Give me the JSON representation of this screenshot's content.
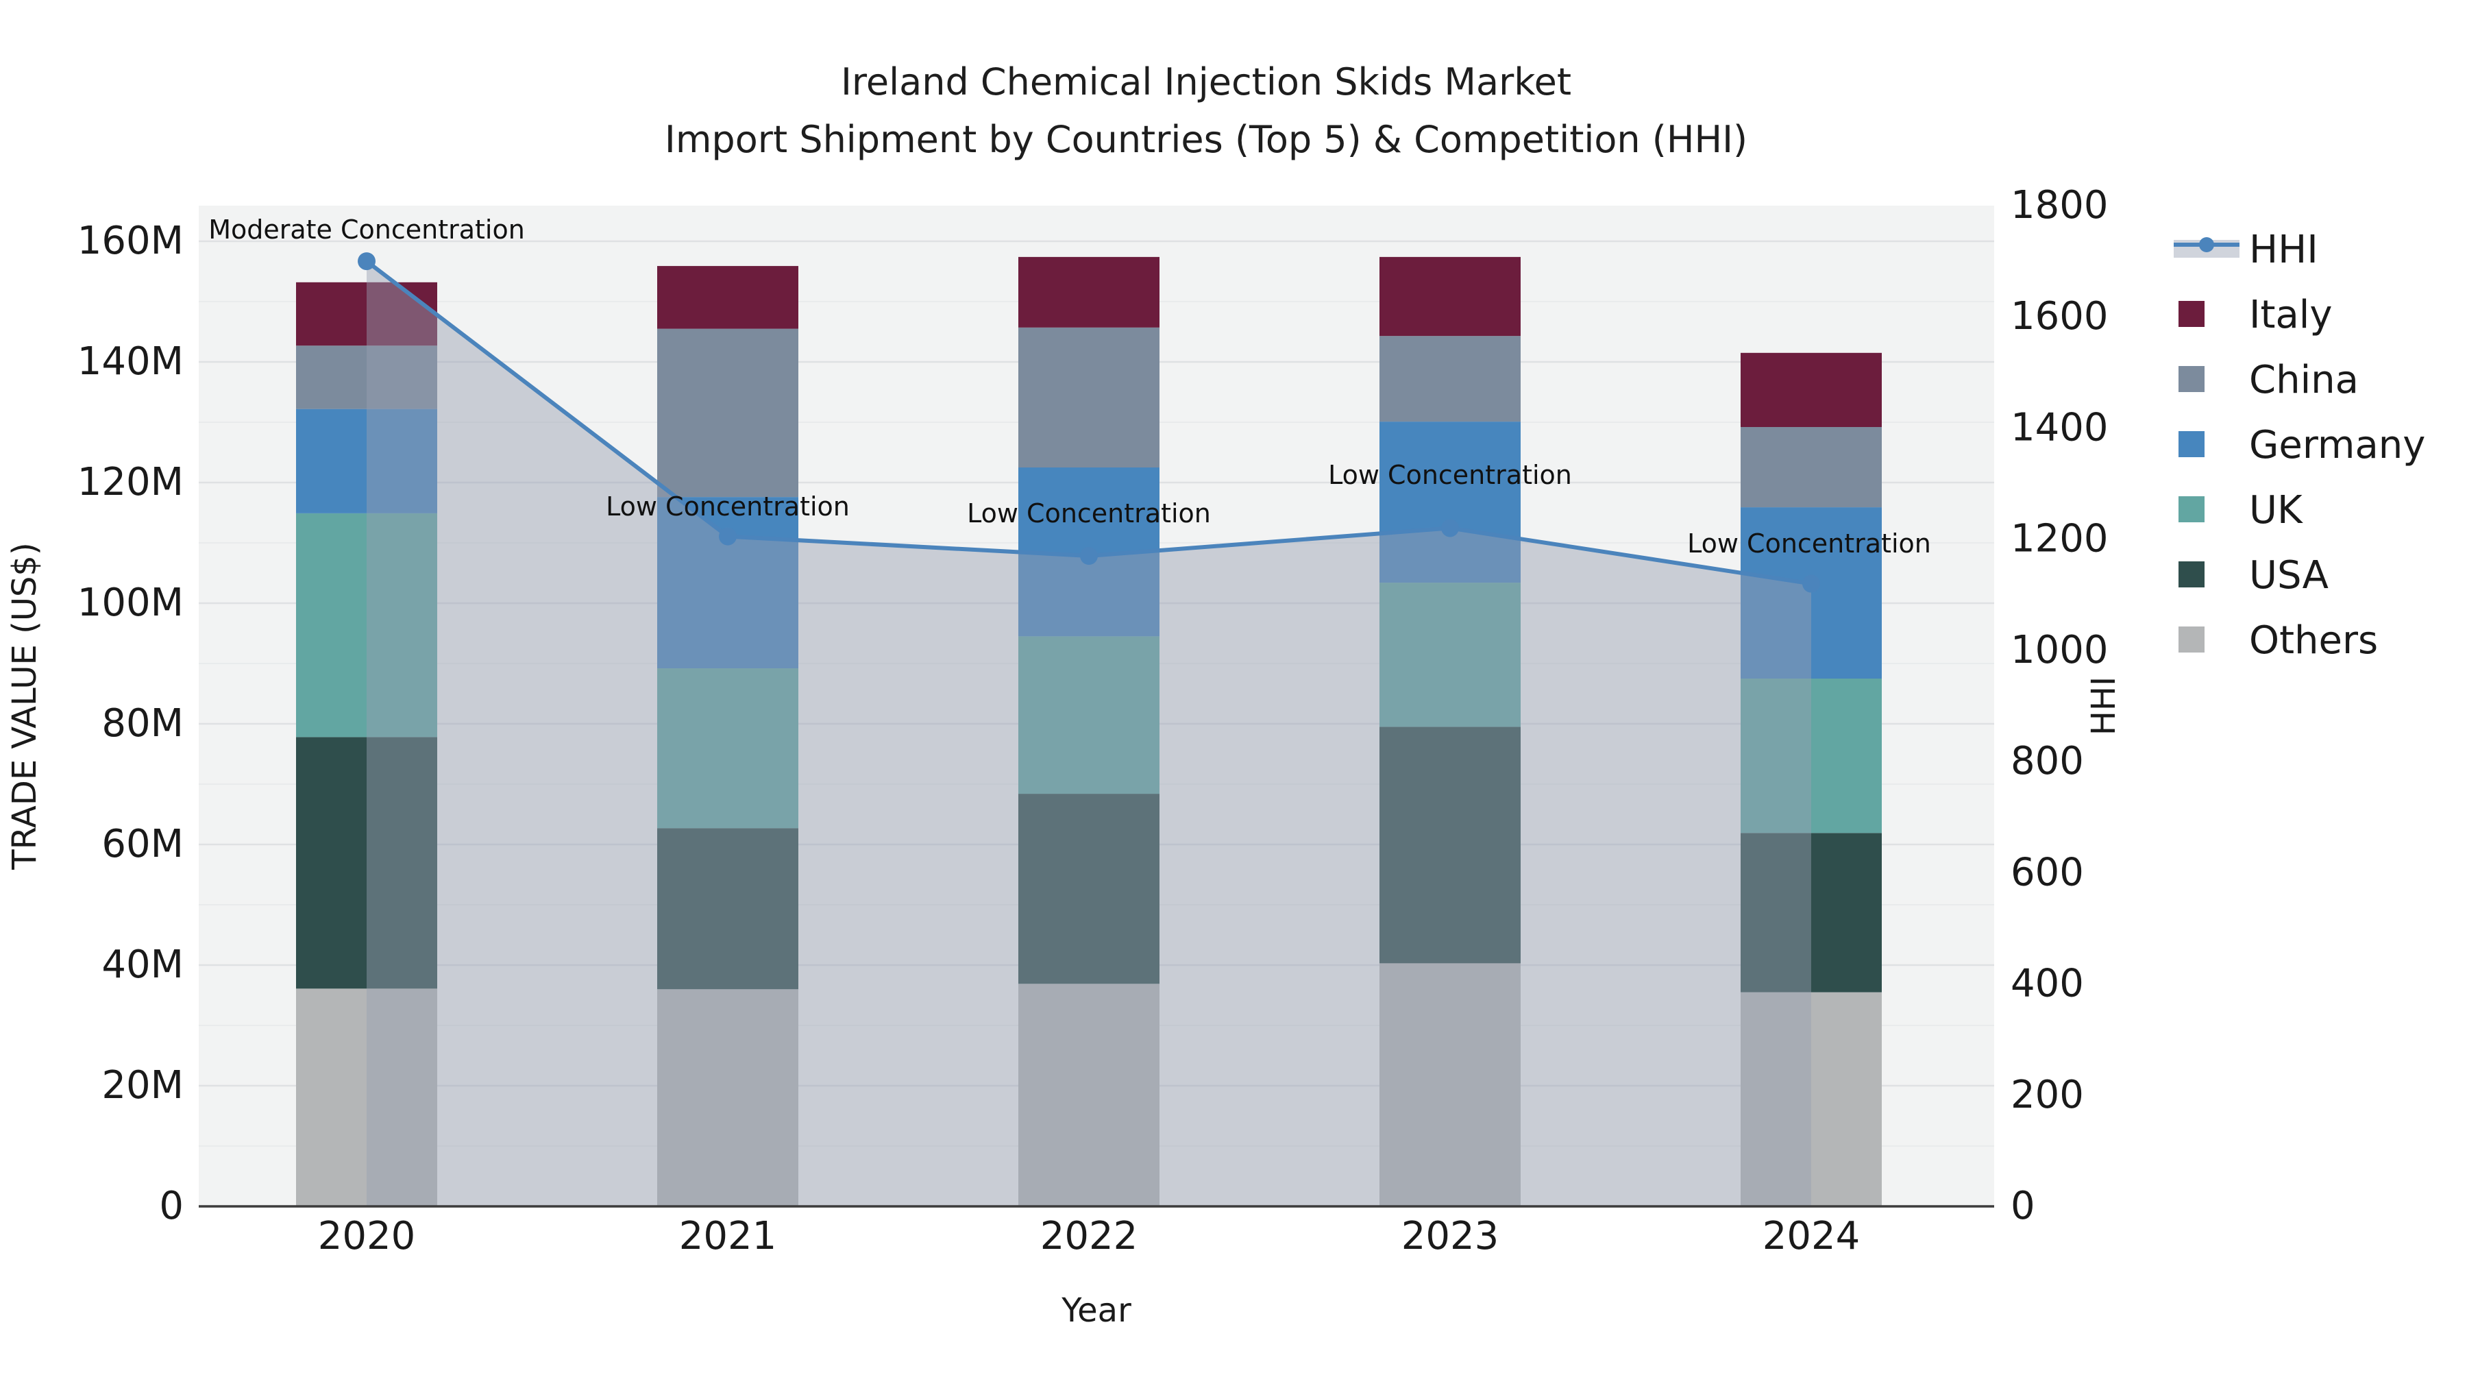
{
  "chart_data": {
    "type": "combo_stacked_bar_line",
    "title": "Ireland Chemical Injection Skids Market",
    "subtitle": "Import Shipment by Countries (Top 5) & Competition (HHI)",
    "xlabel": "Year",
    "ylabel_left": "TRADE VALUE (US$)",
    "ylabel_right": "HHI",
    "categories": [
      "2020",
      "2021",
      "2022",
      "2023",
      "2024"
    ],
    "bar_value_unit": "million US$",
    "stack_order_bottom_to_top": [
      "Others",
      "USA",
      "UK",
      "Germany",
      "China",
      "Italy"
    ],
    "series": [
      {
        "name": "Others",
        "color": "#b4b6b7",
        "values": [
          36.1,
          36.0,
          36.9,
          40.3,
          35.5
        ]
      },
      {
        "name": "USA",
        "color": "#2f4e4c",
        "values": [
          41.7,
          26.7,
          31.5,
          39.2,
          26.4
        ]
      },
      {
        "name": "UK",
        "color": "#62a6a2",
        "values": [
          37.1,
          26.5,
          26.1,
          23.9,
          25.6
        ]
      },
      {
        "name": "Germany",
        "color": "#4786be",
        "values": [
          17.3,
          28.4,
          28.0,
          26.7,
          28.4
        ]
      },
      {
        "name": "China",
        "color": "#7c8b9d",
        "values": [
          10.5,
          27.9,
          23.2,
          14.2,
          13.3
        ]
      },
      {
        "name": "Italy",
        "color": "#6c1d3d",
        "values": [
          10.5,
          10.4,
          11.7,
          13.1,
          12.3
        ]
      }
    ],
    "bar_totals": [
      153.2,
      155.9,
      157.4,
      157.4,
      141.5
    ],
    "hhi_line": {
      "name": "HHI",
      "axis": "right",
      "color": "#4b84bc",
      "fill_color": "rgba(150,160,178,0.45)",
      "marker": "circle",
      "values": [
        1700,
        1205,
        1170,
        1220,
        1120
      ]
    },
    "annotations": [
      {
        "year": "2020",
        "text": "Moderate Concentration"
      },
      {
        "year": "2021",
        "text": "Low Concentration"
      },
      {
        "year": "2022",
        "text": "Low Concentration"
      },
      {
        "year": "2023",
        "text": "Low Concentration"
      },
      {
        "year": "2024",
        "text": "Low Concentration"
      }
    ],
    "y_left_axis": {
      "min": 0,
      "max": 160,
      "step": 20,
      "tick_labels": [
        "0",
        "20M",
        "40M",
        "60M",
        "80M",
        "100M",
        "120M",
        "140M",
        "160M"
      ]
    },
    "y_right_axis": {
      "min": 0,
      "max": 1800,
      "step": 200,
      "tick_labels": [
        "0",
        "200",
        "400",
        "600",
        "800",
        "1000",
        "1200",
        "1400",
        "1600",
        "1800"
      ]
    },
    "grid": true,
    "legend_position": "right",
    "legend_order": [
      "HHI",
      "Italy",
      "China",
      "Germany",
      "UK",
      "USA",
      "Others"
    ]
  },
  "styles": {
    "page_bg": "#ffffff",
    "plot_bg": "#f2f3f3",
    "grid_major": "#dfe1e3",
    "grid_minor": "#e9ebec",
    "axis_line": "#3c3c3c",
    "text_color": "#1a1a1a",
    "annotation_color": "#111111"
  }
}
